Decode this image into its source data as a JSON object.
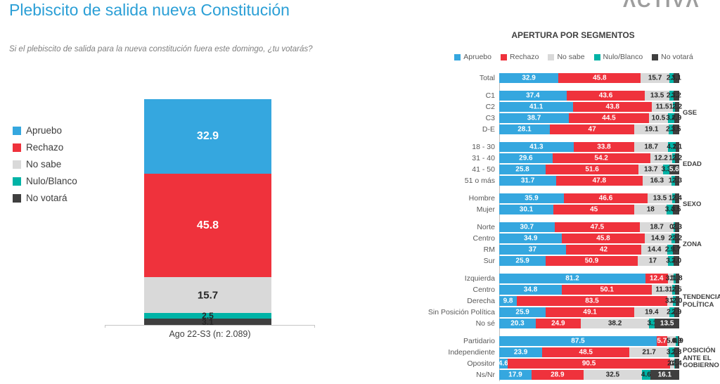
{
  "page": {
    "title": "Plebiscito de salida nueva Constitución",
    "subtitle": "Si el plebiscito de salida para la nueva constitución fuera este domingo, ¿tu votarás?",
    "logo_text": "ΛCTIVΛ"
  },
  "series_colors": [
    "#35A7DF",
    "#EF323C",
    "#D9D9D9",
    "#00B3A6",
    "#3F3F3F"
  ],
  "accent": {
    "title_blue": "#2B9FD6",
    "axis_gray": "#C6C6C6",
    "label_gray": "#595959"
  },
  "legend": [
    "Apruebo",
    "Rechazo",
    "No sabe",
    "Nulo/Blanco",
    "No votará"
  ],
  "chart_data": [
    {
      "id": "overall",
      "type": "bar",
      "stacked": true,
      "orientation": "vertical",
      "grid": false,
      "ylim": [
        0,
        100
      ],
      "legend_position": "left",
      "categories": [
        "Ago 22-S3 (n: 2.089)"
      ],
      "series": [
        {
          "name": "Apruebo",
          "values": [
            32.9
          ]
        },
        {
          "name": "Rechazo",
          "values": [
            45.8
          ]
        },
        {
          "name": "No sabe",
          "values": [
            15.7
          ]
        },
        {
          "name": "Nulo/Blanco",
          "values": [
            2.5
          ]
        },
        {
          "name": "No votará",
          "values": [
            3.1
          ]
        }
      ]
    },
    {
      "id": "segments",
      "type": "bar",
      "stacked": true,
      "orientation": "horizontal",
      "title": "APERTURA POR SEGMENTOS",
      "xlim": [
        0,
        100
      ],
      "legend_position": "top",
      "series_names": [
        "Apruebo",
        "Rechazo",
        "No sabe",
        "Nulo/Blanco",
        "No votará"
      ],
      "groups": [
        {
          "group": "",
          "rows": [
            {
              "label": "Total",
              "values": [
                32.9,
                45.8,
                15.7,
                2.5,
                3.1
              ]
            }
          ]
        },
        {
          "group": "GSE",
          "rows": [
            {
              "label": "C1",
              "values": [
                37.4,
                43.6,
                13.5,
                2.3,
                3.2
              ]
            },
            {
              "label": "C2",
              "values": [
                41.1,
                43.8,
                11.5,
                1.4,
                2.2
              ]
            },
            {
              "label": "C3",
              "values": [
                38.7,
                44.5,
                10.5,
                3.4,
                2.9
              ]
            },
            {
              "label": "D-E",
              "values": [
                28.1,
                47,
                19.1,
                2.3,
                3.5
              ]
            }
          ]
        },
        {
          "group": "EDAD",
          "rows": [
            {
              "label": "18 - 30",
              "values": [
                41.3,
                33.8,
                18.7,
                4.1,
                2.1
              ]
            },
            {
              "label": "31 - 40",
              "values": [
                29.6,
                54.2,
                12.2,
                1.8,
                2.2
              ]
            },
            {
              "label": "41 - 50",
              "values": [
                25.8,
                51.6,
                13.7,
                3.3,
                5.6
              ]
            },
            {
              "label": "51 o más",
              "values": [
                31.7,
                47.8,
                16.3,
                1.9,
                2.3
              ]
            }
          ]
        },
        {
          "group": "SEXO",
          "rows": [
            {
              "label": "Hombre",
              "values": [
                35.9,
                46.6,
                13.5,
                1.6,
                2.4
              ]
            },
            {
              "label": "Mujer",
              "values": [
                30.1,
                45,
                18,
                3.4,
                3.5
              ]
            }
          ]
        },
        {
          "group": "ZONA",
          "rows": [
            {
              "label": "Norte",
              "values": [
                30.7,
                47.5,
                18.7,
                0.8,
                2.3
              ]
            },
            {
              "label": "Centro",
              "values": [
                34.9,
                45.8,
                14.9,
                2.2,
                2.2
              ]
            },
            {
              "label": "RM",
              "values": [
                37,
                42,
                14.4,
                2.9,
                3.7
              ]
            },
            {
              "label": "Sur",
              "values": [
                25.9,
                50.9,
                17,
                3.2,
                3.0
              ]
            }
          ]
        },
        {
          "group": "TENDENCIA POLÍTICA",
          "rows": [
            {
              "label": "Izquierda",
              "values": [
                81.2,
                12.4,
                3.1,
                1.5,
                1.8
              ]
            },
            {
              "label": "Centro",
              "values": [
                34.8,
                50.1,
                11.3,
                1.3,
                2.5
              ]
            },
            {
              "label": "Derecha",
              "values": [
                9.8,
                83.5,
                3.2,
                1.5,
                2.0
              ]
            },
            {
              "label": "Sin Posición Política",
              "values": [
                25.9,
                49.1,
                19.4,
                2.7,
                2.9
              ]
            },
            {
              "label": "No sé",
              "values": [
                20.3,
                24.9,
                38.2,
                3.1,
                13.5
              ]
            }
          ]
        },
        {
          "group": "POSICIÓN ANTE EL GOBIERNO",
          "rows": [
            {
              "label": "Partidario",
              "values": [
                87.5,
                5.7,
                5.0,
                0.9,
                0.9
              ]
            },
            {
              "label": "Independiente",
              "values": [
                23.9,
                48.5,
                21.7,
                3.1,
                2.8
              ]
            },
            {
              "label": "Opositor",
              "values": [
                4.6,
                90.5,
                2.1,
                0.4,
                2.4
              ]
            },
            {
              "label": "Ns/Nr",
              "values": [
                17.9,
                28.9,
                32.5,
                4.6,
                16.1
              ]
            }
          ]
        }
      ]
    }
  ]
}
